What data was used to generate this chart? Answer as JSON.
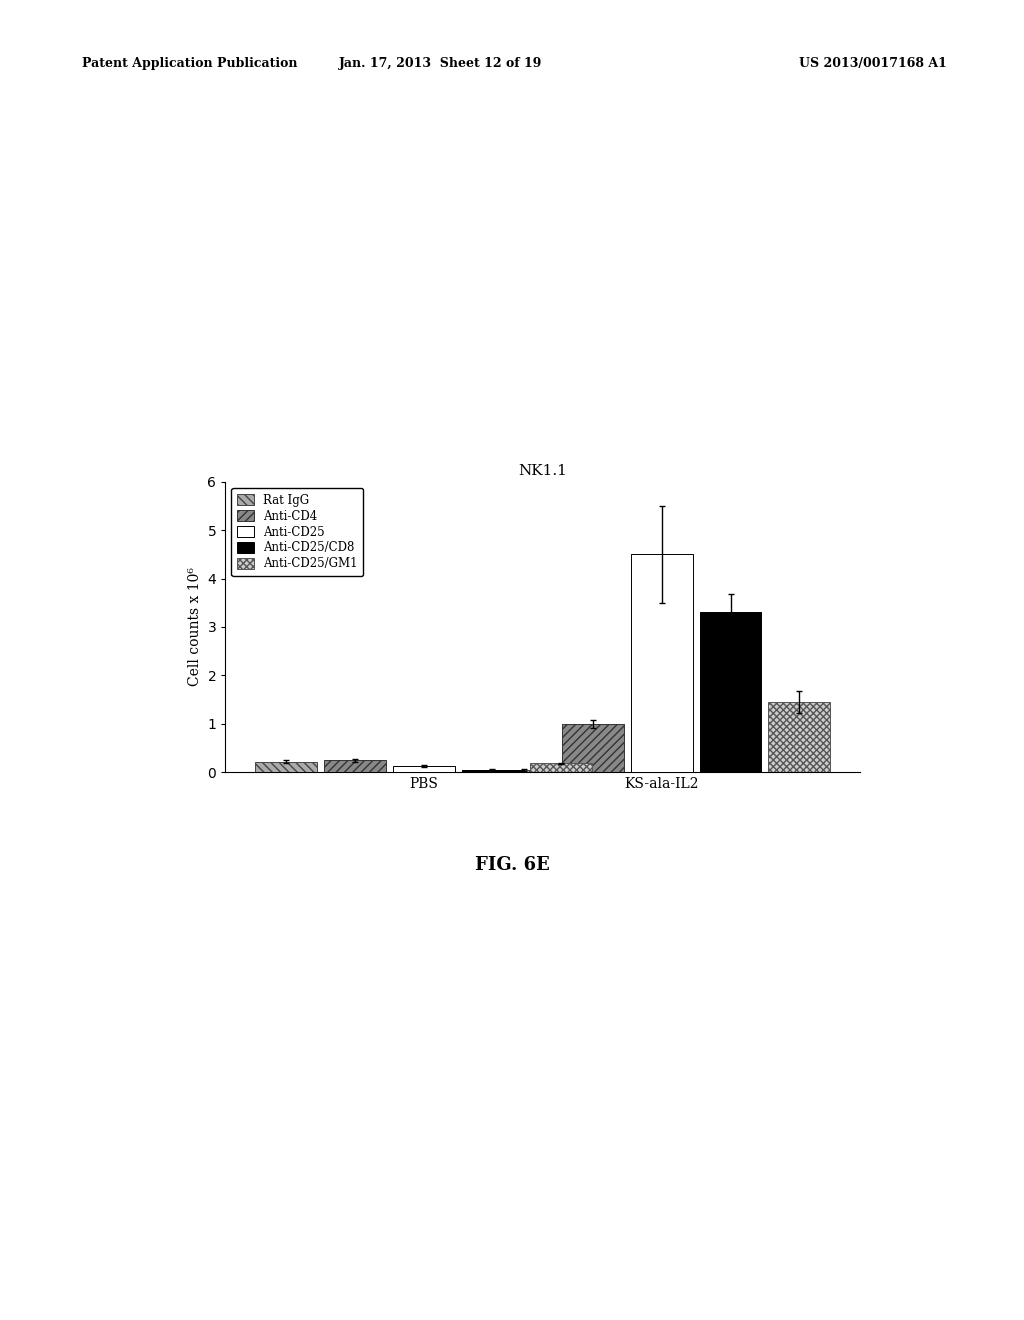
{
  "title": "NK1.1",
  "ylabel": "Cell counts x 10⁶",
  "groups": [
    "PBS",
    "KS-ala-IL2"
  ],
  "series": [
    {
      "label": "Rat IgG",
      "hatch": "\\\\",
      "facecolor": "#aaaaaa",
      "edgecolor": "#444444",
      "values": [
        0.22,
        0.05
      ],
      "errors": [
        0.03,
        0.02
      ]
    },
    {
      "label": "Anti-CD4",
      "hatch": "////",
      "facecolor": "#888888",
      "edgecolor": "#333333",
      "values": [
        0.25,
        1.0
      ],
      "errors": [
        0.03,
        0.08
      ]
    },
    {
      "label": "Anti-CD25",
      "hatch": "",
      "facecolor": "#ffffff",
      "edgecolor": "#000000",
      "values": [
        0.13,
        4.5
      ],
      "errors": [
        0.02,
        1.0
      ]
    },
    {
      "label": "Anti-CD25/CD8",
      "hatch": "",
      "facecolor": "#000000",
      "edgecolor": "#000000",
      "values": [
        0.05,
        3.3
      ],
      "errors": [
        0.01,
        0.38
      ]
    },
    {
      "label": "Anti-CD25/GM1",
      "hatch": "////",
      "facecolor": "#cccccc",
      "edgecolor": "#555555",
      "values": [
        0.18,
        1.45
      ],
      "errors": [
        0.02,
        0.22
      ]
    }
  ],
  "ylim": [
    0,
    6
  ],
  "yticks": [
    0,
    1,
    2,
    3,
    4,
    5,
    6
  ],
  "bar_width": 0.13,
  "group_centers": [
    0.3,
    0.75
  ],
  "figsize": [
    10.24,
    13.2
  ],
  "dpi": 100,
  "header_line1": "Patent Application Publication",
  "header_line2": "Jan. 17, 2013  Sheet 12 of 19",
  "header_line3": "US 2013/0017168 A1",
  "fig_label": "FIG. 6E"
}
